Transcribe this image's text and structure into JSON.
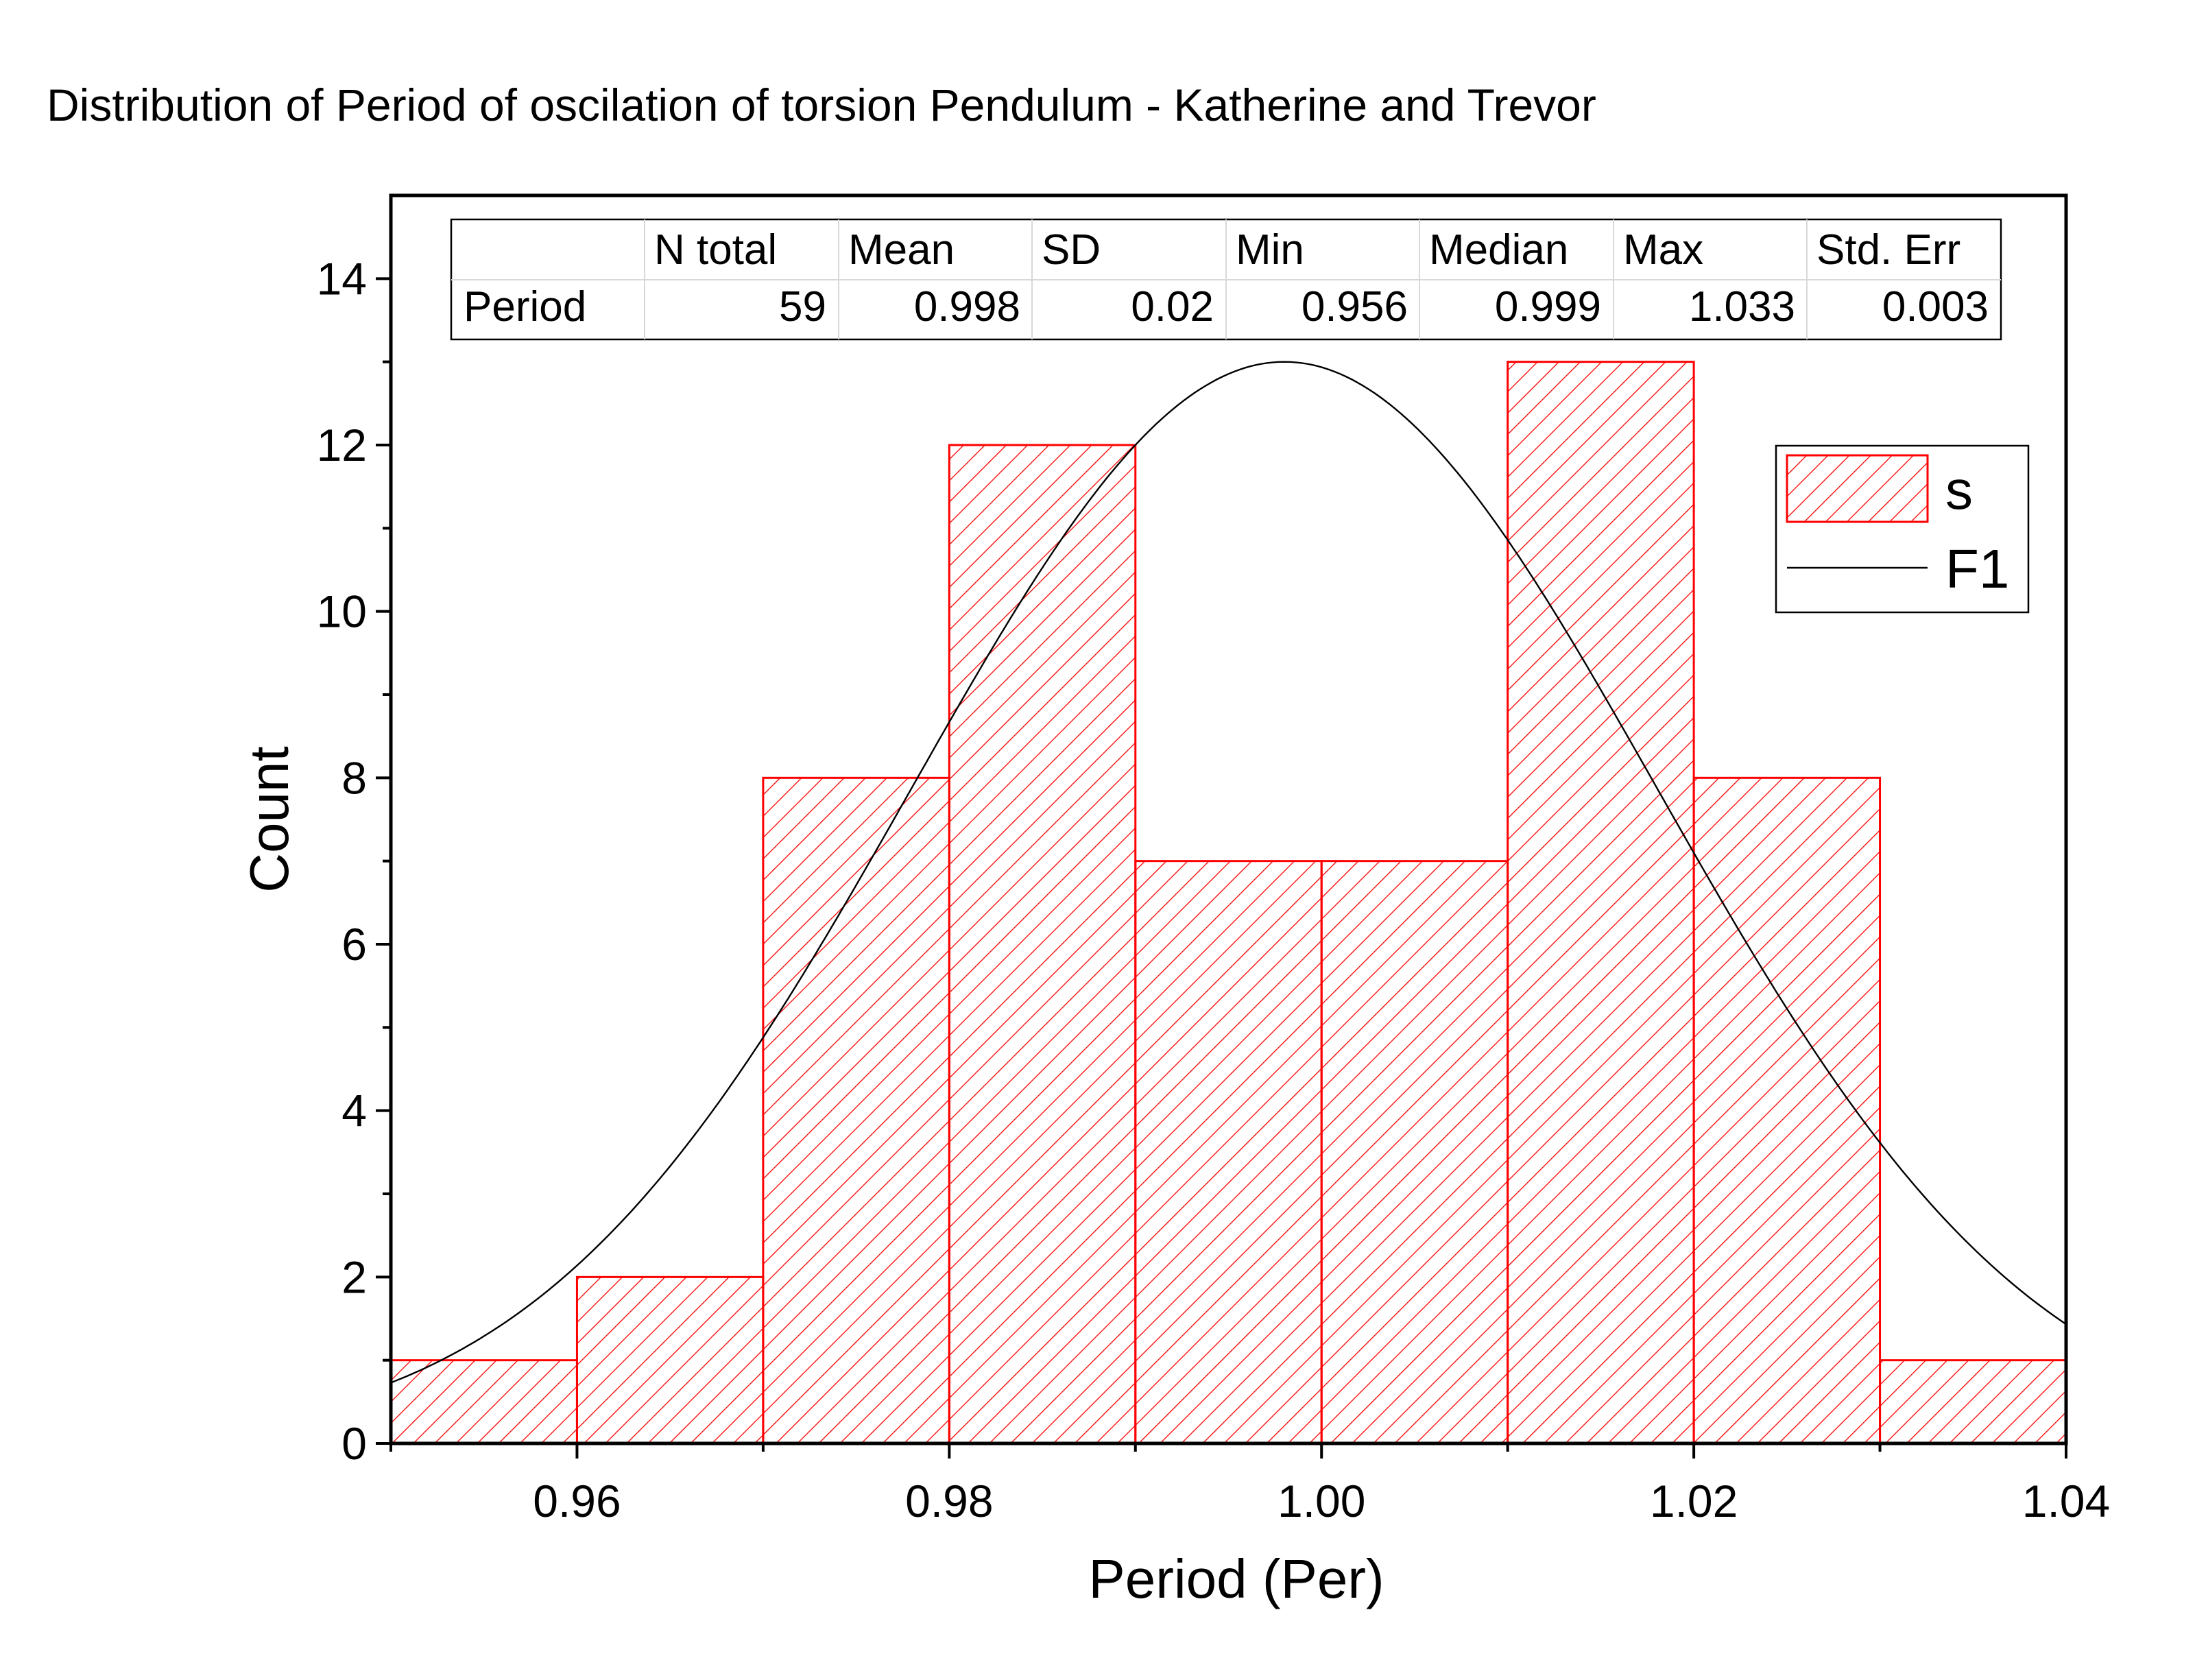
{
  "chart_data": {
    "type": "bar",
    "title": "Distribution of Period of oscilation of torsion Pendulum - Katherine and Trevor",
    "xlabel": "Period (Per)",
    "ylabel": "Count",
    "xlim": [
      0.95,
      1.04
    ],
    "ylim": [
      0,
      15
    ],
    "x_ticks": [
      "0.96",
      "0.98",
      "1.00",
      "1.02",
      "1.04"
    ],
    "x_tick_values": [
      0.96,
      0.98,
      1.0,
      1.02,
      1.04
    ],
    "y_ticks": [
      "0",
      "2",
      "4",
      "6",
      "8",
      "10",
      "12",
      "14"
    ],
    "y_tick_values": [
      0,
      2,
      4,
      6,
      8,
      10,
      12,
      14
    ],
    "bin_width": 0.01,
    "bins": [
      {
        "start": 0.95,
        "end": 0.96,
        "count": 1
      },
      {
        "start": 0.96,
        "end": 0.97,
        "count": 2
      },
      {
        "start": 0.97,
        "end": 0.98,
        "count": 8
      },
      {
        "start": 0.98,
        "end": 0.99,
        "count": 12
      },
      {
        "start": 0.99,
        "end": 1.0,
        "count": 7
      },
      {
        "start": 1.0,
        "end": 1.01,
        "count": 7
      },
      {
        "start": 1.01,
        "end": 1.02,
        "count": 13
      },
      {
        "start": 1.02,
        "end": 1.03,
        "count": 8
      },
      {
        "start": 1.03,
        "end": 1.04,
        "count": 1
      }
    ],
    "fit_curve": {
      "type": "normal",
      "mean": 0.998,
      "sd": 0.02,
      "peak": 13.0
    },
    "series": [
      {
        "name": "s",
        "kind": "histogram",
        "color": "#ff0000",
        "fill": "hatched"
      },
      {
        "name": "F1",
        "kind": "line",
        "color": "#000000"
      }
    ],
    "legend": {
      "position": "top-right",
      "entries": [
        "s",
        "F1"
      ]
    },
    "grid": false,
    "stats_table": {
      "headers": [
        "",
        "N total",
        "Mean",
        "SD",
        "Min",
        "Median",
        "Max",
        "Std. Err"
      ],
      "rows": [
        [
          "Period",
          "59",
          "0.998",
          "0.02",
          "0.956",
          "0.999",
          "1.033",
          "0.003"
        ]
      ]
    }
  }
}
